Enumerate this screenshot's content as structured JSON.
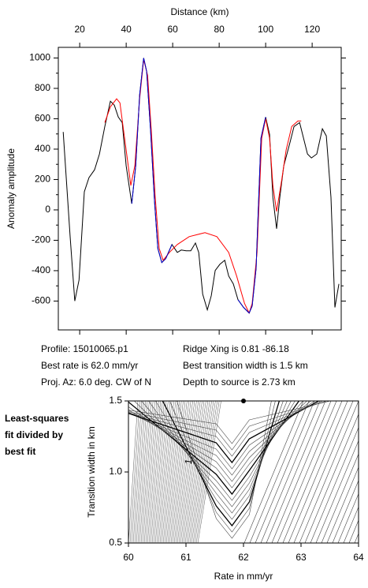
{
  "chart_data": [
    {
      "type": "line",
      "xlabel": "Distance (km)",
      "ylabel": "Anomaly amplitude",
      "xlim": [
        10.8,
        132.5
      ],
      "xticks": [
        20,
        40,
        60,
        80,
        100,
        120
      ],
      "ylim": [
        -790,
        1070
      ],
      "yticks": [
        -600,
        -400,
        -200,
        0,
        200,
        400,
        600,
        800,
        1000
      ],
      "series": [
        {
          "color": "#000000",
          "x": [
            12.9,
            15.9,
            17.9,
            19.7,
            22,
            24,
            26.4,
            28.5,
            30.8,
            33.2,
            34.9,
            36.6,
            38.3,
            40,
            42.4,
            44.1,
            45.8,
            47.5,
            48.8,
            50.5,
            52.2,
            53.6,
            55.3,
            57,
            59.7,
            62,
            63.7,
            65.8,
            67.8,
            69.8,
            71.2,
            72.9,
            74.9,
            76.6,
            78.3,
            80.3,
            82.4,
            84.1,
            86.1,
            88.1,
            90.5,
            92.9,
            94.2,
            95.9,
            98,
            100,
            101.7,
            103.1,
            104.7,
            106.1,
            107.8,
            110.5,
            112.2,
            114.6,
            116.3,
            118,
            119.7,
            122,
            124.4,
            126.1,
            128.1,
            129.8,
            131.5
          ],
          "values": [
            513,
            -176,
            -600,
            -461,
            119,
            212,
            264,
            368,
            549,
            715,
            689,
            611,
            575,
            290,
            41,
            290,
            756,
            1000,
            912,
            523,
            57,
            -254,
            -347,
            -321,
            -228,
            -280,
            -264,
            -269,
            -269,
            -218,
            -280,
            -554,
            -658,
            -565,
            -399,
            -358,
            -332,
            -435,
            -487,
            -591,
            -642,
            -679,
            -632,
            -383,
            472,
            611,
            497,
            83,
            -124,
            83,
            290,
            446,
            549,
            575,
            472,
            368,
            342,
            368,
            534,
            487,
            83,
            -642,
            -487
          ]
        },
        {
          "color": "#ff0000",
          "x": [
            30.8,
            33.2,
            35.9,
            37.3,
            40,
            42,
            43.7,
            45.8,
            47.5,
            49.2,
            50.8,
            52.5,
            54.2,
            55.9,
            58.6,
            62,
            67.1,
            73.9,
            79,
            84.1,
            87.5,
            90.9,
            92.9,
            94.2,
            96.3,
            98.3,
            100,
            101.7,
            103.1,
            104.7,
            106.8,
            108.8,
            111.2,
            113.9,
            115.3
          ],
          "values": [
            575,
            679,
            731,
            705,
            394,
            161,
            290,
            731,
            990,
            886,
            523,
            83,
            -254,
            -332,
            -280,
            -228,
            -176,
            -150,
            -176,
            -280,
            -435,
            -616,
            -679,
            -616,
            -280,
            472,
            601,
            472,
            161,
            -10,
            187,
            394,
            549,
            586,
            586
          ]
        },
        {
          "color": "#0000cc",
          "x": [
            42.4,
            44.1,
            45.8,
            47.5,
            48.8,
            50.5,
            52.2,
            53.6,
            55.3,
            57,
            59.7,
            73,
            88.1,
            90.5,
            92.9,
            94.2,
            95.9,
            98,
            100
          ],
          "values": [
            41,
            290,
            756,
            1000,
            912,
            523,
            57,
            -254,
            -347,
            -321,
            -228,
            null,
            -591,
            -642,
            -679,
            -632,
            -383,
            472,
            611
          ]
        }
      ]
    },
    {
      "type": "contour",
      "xlabel": "Rate in mm/yr",
      "ylabel": "Transition width in km",
      "xlim": [
        60,
        64
      ],
      "xticks": [
        60,
        61,
        62,
        63,
        64
      ],
      "ylim": [
        0.5,
        1.5
      ],
      "yticks": [
        {
          "value": 0.5,
          "label": "0.5"
        },
        {
          "value": 1.0,
          "label": "1.0"
        },
        {
          "value": 1.5,
          "label": "1.5"
        }
      ],
      "best_fit": {
        "x": 62.0,
        "y": 1.5
      },
      "contour_label": "1",
      "side_note": [
        "Least-squares",
        "fit divided by",
        "best fit"
      ]
    }
  ],
  "info": [
    [
      "Profile: 15010065.p1",
      "Ridge Xing is 0.81 -86.18"
    ],
    [
      "Best rate is 62.0 mm/yr",
      "Best transition width is 1.5 km"
    ],
    [
      "Proj. Az: 6.0 deg. CW of N",
      "Depth to source is   2.73 km"
    ]
  ]
}
